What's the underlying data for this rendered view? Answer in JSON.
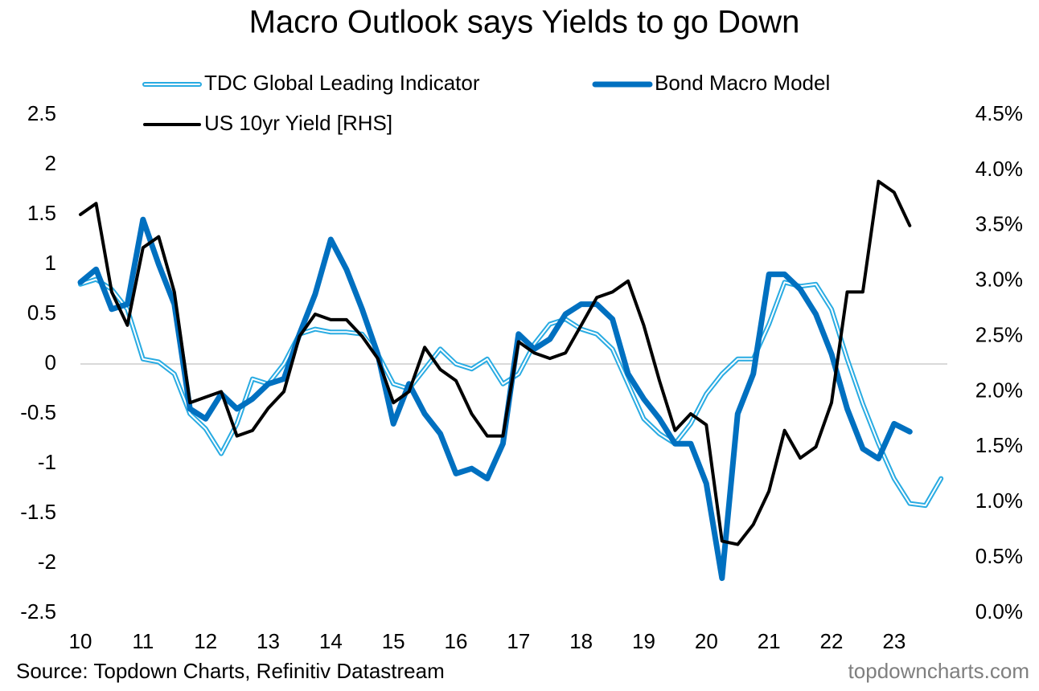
{
  "chart_data": {
    "type": "line",
    "title": "Macro Outlook says Yields to go Down",
    "source": "Source: Topdown Charts, Refinitiv Datastream",
    "watermark": "topdowncharts.com",
    "x": [
      10,
      10.25,
      10.5,
      10.75,
      11,
      11.25,
      11.5,
      11.75,
      12,
      12.25,
      12.5,
      12.75,
      13,
      13.25,
      13.5,
      13.75,
      14,
      14.25,
      14.5,
      14.75,
      15,
      15.25,
      15.5,
      15.75,
      16,
      16.25,
      16.5,
      16.75,
      17,
      17.25,
      17.5,
      17.75,
      18,
      18.25,
      18.5,
      18.75,
      19,
      19.25,
      19.5,
      19.75,
      20,
      20.25,
      20.5,
      20.75,
      21,
      21.25,
      21.5,
      21.75,
      22,
      22.25,
      22.5,
      22.75,
      23,
      23.25,
      23.5,
      23.75
    ],
    "xlim": [
      10,
      23.85
    ],
    "xticks": [
      10,
      11,
      12,
      13,
      14,
      15,
      16,
      17,
      18,
      19,
      20,
      21,
      22,
      23
    ],
    "ylim": [
      -2.5,
      2.5
    ],
    "yticks": [
      2.5,
      2,
      1.5,
      1,
      0.5,
      0,
      -0.5,
      -1,
      -1.5,
      -2,
      -2.5
    ],
    "y2lim": [
      0,
      4.5
    ],
    "y2ticks": [
      {
        "value": 4.5,
        "label": "4.5%"
      },
      {
        "value": 4,
        "label": "4.0%"
      },
      {
        "value": 3.5,
        "label": "3.5%"
      },
      {
        "value": 3,
        "label": "3.0%"
      },
      {
        "value": 2.5,
        "label": "2.5%"
      },
      {
        "value": 2,
        "label": "2.0%"
      },
      {
        "value": 1.5,
        "label": "1.5%"
      },
      {
        "value": 1,
        "label": "1.0%"
      },
      {
        "value": 0.5,
        "label": "0.5%"
      },
      {
        "value": 0,
        "label": "0.0%"
      }
    ],
    "grid": false,
    "zero_line": true,
    "legend": "top",
    "series": [
      {
        "name": "TDC Global Leading Indicator",
        "color": "#29abe2",
        "style": "double",
        "values": [
          0.8,
          0.85,
          0.75,
          0.55,
          0.05,
          0.02,
          -0.1,
          -0.5,
          -0.65,
          -0.9,
          -0.6,
          -0.15,
          -0.2,
          0,
          0.3,
          0.35,
          0.32,
          0.32,
          0.3,
          0.1,
          -0.2,
          -0.25,
          -0.05,
          0.15,
          0,
          -0.05,
          0.05,
          -0.2,
          -0.1,
          0.2,
          0.4,
          0.45,
          0.35,
          0.3,
          0.15,
          -0.2,
          -0.55,
          -0.7,
          -0.8,
          -0.6,
          -0.3,
          -0.1,
          0.05,
          0.05,
          0.4,
          0.82,
          0.78,
          0.8,
          0.55,
          0.05,
          -0.4,
          -0.8,
          -1.15,
          -1.4,
          -1.42,
          -1.15
        ]
      },
      {
        "name": "Bond Macro Model",
        "color": "#0070c0",
        "style": "thick",
        "values": [
          0.82,
          0.95,
          0.55,
          0.6,
          1.45,
          1,
          0.6,
          -0.45,
          -0.55,
          -0.3,
          -0.45,
          -0.35,
          -0.2,
          -0.15,
          0.3,
          0.7,
          1.25,
          0.95,
          0.55,
          0.1,
          -0.6,
          -0.2,
          -0.5,
          -0.7,
          -1.1,
          -1.05,
          -1.15,
          -0.8,
          0.3,
          0.15,
          0.25,
          0.5,
          0.6,
          0.6,
          0.45,
          -0.1,
          -0.35,
          -0.55,
          -0.8,
          -0.8,
          -1.2,
          -2.15,
          -0.5,
          -0.1,
          0.9,
          0.9,
          0.75,
          0.5,
          0.1,
          -0.45,
          -0.85,
          -0.95,
          -0.6,
          -0.68,
          null,
          null
        ]
      },
      {
        "name": "US 10yr Yield [RHS]",
        "color": "#000000",
        "style": "normal",
        "axis": "y2",
        "values": [
          3.6,
          3.7,
          2.9,
          2.6,
          3.3,
          3.4,
          2.9,
          1.9,
          1.95,
          2,
          1.6,
          1.65,
          1.85,
          2,
          2.5,
          2.7,
          2.65,
          2.65,
          2.5,
          2.3,
          1.9,
          2,
          2.4,
          2.2,
          2.1,
          1.8,
          1.6,
          1.6,
          2.45,
          2.35,
          2.3,
          2.35,
          2.6,
          2.85,
          2.9,
          3,
          2.6,
          2.1,
          1.65,
          1.8,
          1.7,
          0.65,
          0.62,
          0.8,
          1.1,
          1.65,
          1.4,
          1.5,
          1.9,
          2.9,
          2.9,
          3.9,
          3.8,
          3.5,
          null,
          null
        ]
      }
    ]
  }
}
